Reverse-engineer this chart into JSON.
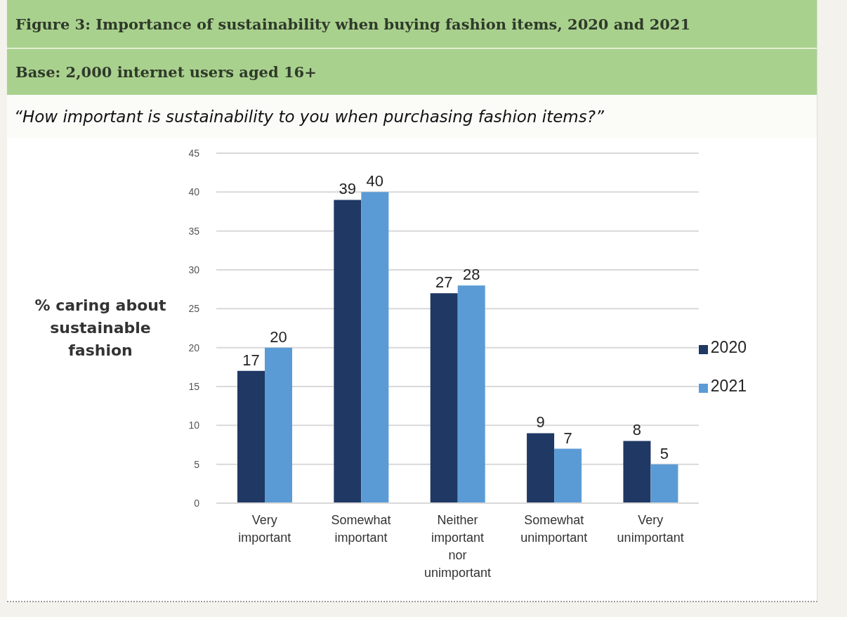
{
  "chart_data": {
    "type": "bar",
    "title": "Figure 3: Importance of sustainability when buying fashion items, 2020 and 2021",
    "subtitle": "Base: 2,000 internet users aged 16+",
    "annotations": [
      "“How important is sustainability to you when purchasing fashion items?”"
    ],
    "ylabel": "% caring about sustainable fashion",
    "categories": [
      "Very important",
      "Somewhat important",
      "Neither important nor unimportant",
      "Somewhat unimportant",
      "Very unimportant"
    ],
    "series": [
      {
        "name": "2020",
        "color": "#1f3864",
        "values": [
          17,
          39,
          27,
          9,
          8
        ]
      },
      {
        "name": "2021",
        "color": "#5b9bd5",
        "values": [
          20,
          40,
          28,
          7,
          5
        ]
      }
    ],
    "ylim": [
      0,
      45
    ],
    "yticks": [
      0,
      5,
      10,
      15,
      20,
      25,
      30,
      35,
      40,
      45
    ],
    "grid": "y",
    "legend": "right",
    "data_labels": true
  }
}
